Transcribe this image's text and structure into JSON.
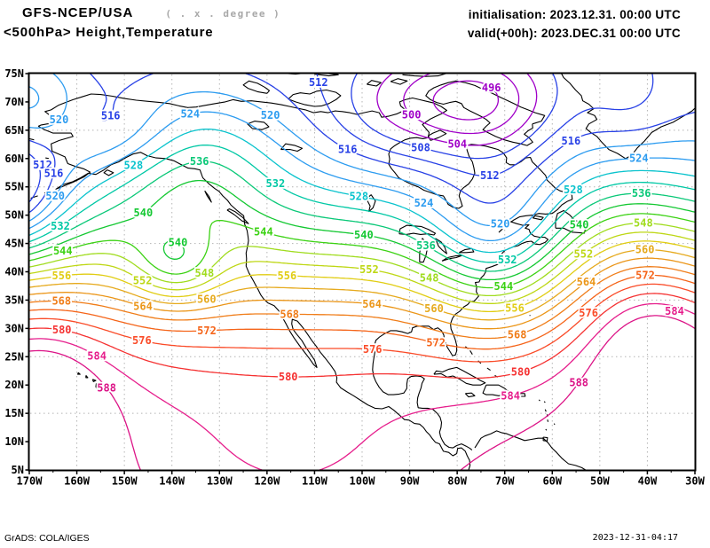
{
  "header": {
    "model": "GFS-NCEP/USA",
    "resolution_note": "( . x . degree )",
    "title": "<500hPa> Height,Temperature",
    "init_line": "initialisation: 2023.12.31.  00:00 UTC",
    "valid_line": "valid(+00h): 2023.DEC.31 00:00 UTC"
  },
  "footer": {
    "left": "GrADS: COLA/IGES",
    "right": "2023-12-31-04:17"
  },
  "axes": {
    "lat_ticks": [
      {
        "label": "75N",
        "value": 75
      },
      {
        "label": "70N",
        "value": 70
      },
      {
        "label": "65N",
        "value": 65
      },
      {
        "label": "60N",
        "value": 60
      },
      {
        "label": "55N",
        "value": 55
      },
      {
        "label": "50N",
        "value": 50
      },
      {
        "label": "45N",
        "value": 45
      },
      {
        "label": "40N",
        "value": 40
      },
      {
        "label": "35N",
        "value": 35
      },
      {
        "label": "30N",
        "value": 30
      },
      {
        "label": "25N",
        "value": 25
      },
      {
        "label": "20N",
        "value": 20
      },
      {
        "label": "15N",
        "value": 15
      },
      {
        "label": "10N",
        "value": 10
      },
      {
        "label": "5N",
        "value": 5
      }
    ],
    "lon_ticks": [
      {
        "label": "170W",
        "value": -170
      },
      {
        "label": "160W",
        "value": -160
      },
      {
        "label": "150W",
        "value": -150
      },
      {
        "label": "140W",
        "value": -140
      },
      {
        "label": "130W",
        "value": -130
      },
      {
        "label": "120W",
        "value": -120
      },
      {
        "label": "110W",
        "value": -110
      },
      {
        "label": "100W",
        "value": -100
      },
      {
        "label": "90W",
        "value": -90
      },
      {
        "label": "80W",
        "value": -80
      },
      {
        "label": "70W",
        "value": -70
      },
      {
        "label": "60W",
        "value": -60
      },
      {
        "label": "50W",
        "value": -50
      },
      {
        "label": "40W",
        "value": -40
      },
      {
        "label": "30W",
        "value": -30
      }
    ],
    "grid_lats": [
      65,
      55,
      45,
      35,
      25,
      15
    ]
  },
  "colors": {
    "grid": "#b4b4b4",
    "coastline": "#000000",
    "frame": "#000000",
    "note_text": "#a8a8a8"
  },
  "chart_data": {
    "type": "contour-map",
    "title": "<500hPa> Height,Temperature",
    "variable": "500 hPa geopotential height (dam)",
    "model": "GFS-NCEP/USA",
    "init_time": "2023.12.31 00:00 UTC",
    "valid_time": "2023.DEC.31 00:00 UTC (+00h)",
    "lon_range": [
      "170W",
      "30W"
    ],
    "lat_range": [
      "5N",
      "75N"
    ],
    "contour_interval": 4,
    "contour_min": 496,
    "contour_max": 588,
    "levels": [
      {
        "level": 496,
        "color": "#a000c8"
      },
      {
        "level": 500,
        "color": "#a000c8"
      },
      {
        "level": 504,
        "color": "#a000c8"
      },
      {
        "level": 508,
        "color": "#2841e6"
      },
      {
        "level": 512,
        "color": "#2841e6"
      },
      {
        "level": 516,
        "color": "#2841e6"
      },
      {
        "level": 520,
        "color": "#2d9cf0"
      },
      {
        "level": 524,
        "color": "#2d9cf0"
      },
      {
        "level": 528,
        "color": "#0ac3cd"
      },
      {
        "level": 532,
        "color": "#00c8a5"
      },
      {
        "level": 536,
        "color": "#0ac878"
      },
      {
        "level": 540,
        "color": "#14c832"
      },
      {
        "level": 544,
        "color": "#3cd214"
      },
      {
        "level": 548,
        "color": "#a0dc1e"
      },
      {
        "level": 552,
        "color": "#bed714"
      },
      {
        "level": 556,
        "color": "#e1cd14"
      },
      {
        "level": 560,
        "color": "#e6aa1e"
      },
      {
        "level": 564,
        "color": "#eb9619"
      },
      {
        "level": 568,
        "color": "#f07d19"
      },
      {
        "level": 572,
        "color": "#f56419"
      },
      {
        "level": 576,
        "color": "#fa4b28"
      },
      {
        "level": 580,
        "color": "#f53232"
      },
      {
        "level": 584,
        "color": "#e61e8c"
      },
      {
        "level": 588,
        "color": "#dc1487"
      }
    ],
    "features": {
      "lows": [
        {
          "location": "Baffin Island / Foxe Basin",
          "approx_lat": 70,
          "approx_lon": -76,
          "innermost_closed_contour": 496
        },
        {
          "location": "interior Alaska",
          "approx_lat": 64,
          "approx_lon": -152,
          "innermost_closed_contour": 520
        },
        {
          "location": "eastern Pacific off California",
          "approx_lat": 41,
          "approx_lon": -139,
          "innermost_closed_contour": 544
        }
      ],
      "highs": [
        {
          "location": "subtropical Atlantic (584 ridge bulge)",
          "approx_lat": 30,
          "approx_lon": -45
        },
        {
          "location": "subtropical central Pacific (588 west of Hawaii)",
          "approx_lat": 22,
          "approx_lon": -165
        }
      ]
    }
  }
}
